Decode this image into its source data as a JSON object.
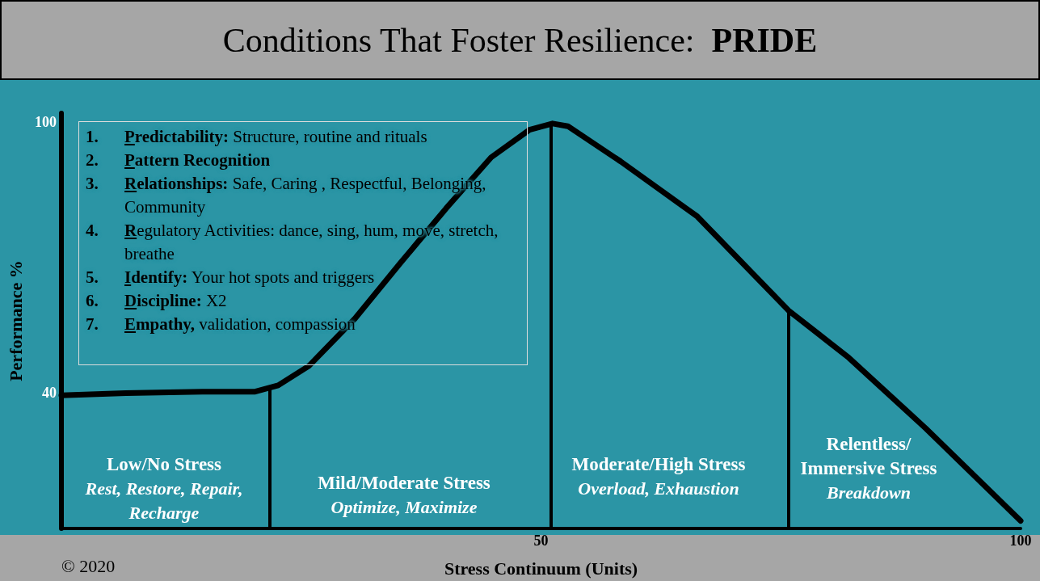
{
  "chart_data": {
    "type": "line",
    "title": "Conditions That Foster Resilience:  PRIDE",
    "xlabel": "Stress Continuum (Units)",
    "ylabel": "Performance %",
    "x": [
      0,
      6.7,
      14.7,
      20.2,
      22.6,
      25.8,
      30.6,
      35.3,
      40.1,
      44.8,
      48.8,
      51.2,
      52.8,
      58.3,
      66.3,
      75.8,
      82.1,
      90.1,
      100
    ],
    "series": [
      {
        "color": "#000000",
        "values": [
          39.5,
          40,
          40.3,
          40.3,
          41.7,
          46,
          56.5,
          68.7,
          80.9,
          92.2,
          98.3,
          99.7,
          99.1,
          91.3,
          79.1,
          58.3,
          47.8,
          32.2,
          11.7
        ]
      }
    ],
    "xlim": [
      0,
      100
    ],
    "xticks": [
      50,
      100
    ],
    "ylim": [
      10,
      102
    ],
    "yticks": [
      40,
      100
    ],
    "grid": false,
    "marker": "none",
    "line_style": "solid",
    "ref_lines": [
      {
        "axis": "x",
        "value": 21.7,
        "color": "#000000"
      },
      {
        "axis": "x",
        "value": 51,
        "color": "#000000"
      },
      {
        "axis": "x",
        "value": 75.8,
        "color": "#000000"
      }
    ],
    "annotations": [
      "Low/No Stress",
      "Rest, Restore, Repair, Recharge",
      "Mild/Moderate Stress",
      "Optimize, Maximize",
      "Moderate/High Stress",
      "Overload, Exhaustion",
      "Relentless/ Immersive Stress",
      "Breakdown",
      "1. Predictability:  Structure, routine and rituals",
      "2. Pattern Recognition",
      "3. Relationships: Safe, Caring , Respectful, Belonging, Community",
      "4. Regulatory Activities: dance, sing, hum, move, stretch, breathe",
      "5. Identify: Your hot spots and triggers",
      "6. Discipline: X2",
      "7. Empathy, validation, compassion",
      "© 2020"
    ]
  }
}
